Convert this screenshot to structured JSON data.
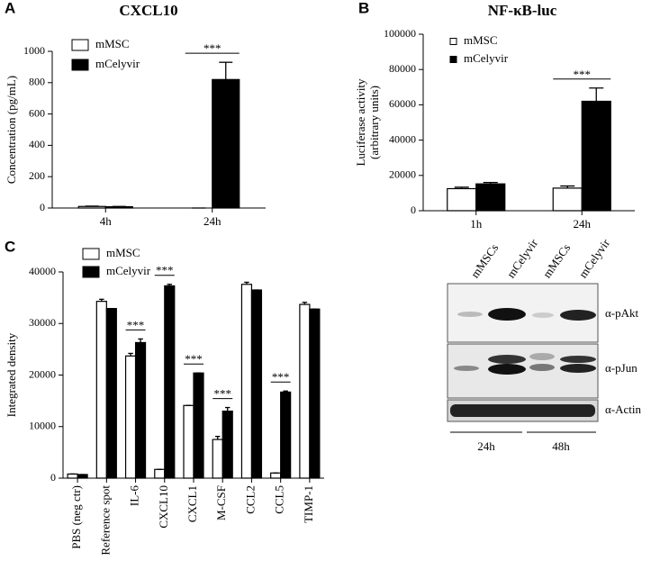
{
  "chart_data": [
    {
      "type": "bar",
      "panel_label": "A",
      "title": "CXCL10",
      "ylabel": [
        "Concentration (pg/mL)"
      ],
      "categories": [
        "4h",
        "24h"
      ],
      "series": [
        {
          "name": "mMSC",
          "color": "#ffffff",
          "values": [
            10,
            0
          ],
          "errors": [
            2,
            0
          ]
        },
        {
          "name": "mCelyvir",
          "color": "#000000",
          "values": [
            8,
            820
          ],
          "errors": [
            2,
            110
          ]
        }
      ],
      "significance": [
        null,
        "***"
      ],
      "ylim": [
        0,
        1000
      ],
      "yticks": [
        0,
        200,
        400,
        600,
        800,
        1000
      ]
    },
    {
      "type": "bar",
      "panel_label": "B",
      "title": "NF-κB-luc",
      "ylabel": [
        "Luciferase activity",
        "(arbitrary units)"
      ],
      "categories": [
        "1h",
        "24h"
      ],
      "series": [
        {
          "name": "mMSC",
          "color": "#ffffff",
          "values": [
            12500,
            12800
          ],
          "errors": [
            800,
            1200
          ]
        },
        {
          "name": "mCelyvir",
          "color": "#000000",
          "values": [
            15200,
            62000
          ],
          "errors": [
            800,
            7500
          ]
        }
      ],
      "significance": [
        null,
        "***"
      ],
      "ylim": [
        0,
        100000
      ],
      "yticks": [
        0,
        20000,
        40000,
        60000,
        80000,
        100000
      ]
    },
    {
      "type": "bar",
      "panel_label": "C",
      "ylabel": [
        "Integrated density"
      ],
      "categories": [
        "PBS (neg ctr)",
        "Reference spot",
        "IL-6",
        "CXCL10",
        "CXCL1",
        "M-CSF",
        "CCL2",
        "CCL5",
        "TIMP-1"
      ],
      "series": [
        {
          "name": "mMSC",
          "color": "#ffffff",
          "values": [
            800,
            34300,
            23700,
            1700,
            14100,
            7500,
            37600,
            1000,
            33700
          ],
          "errors": [
            0,
            400,
            500,
            0,
            0,
            600,
            400,
            0,
            400
          ]
        },
        {
          "name": "mCelyvir",
          "color": "#000000",
          "values": [
            700,
            32900,
            26300,
            37300,
            20400,
            13000,
            36500,
            16700,
            32800
          ],
          "errors": [
            0,
            0,
            700,
            300,
            0,
            700,
            0,
            200,
            0
          ]
        }
      ],
      "significance": [
        null,
        null,
        "***",
        "***",
        "***",
        "***",
        null,
        "***",
        null
      ],
      "ylim": [
        0,
        40000
      ],
      "yticks": [
        0,
        10000,
        20000,
        30000,
        40000
      ]
    }
  ],
  "blot": {
    "lane_labels": [
      "mMSCs",
      "mCelyvir",
      "mMSCs",
      "mCelyvir"
    ],
    "band_labels": [
      "α-pAkt",
      "α-pJun",
      "α-Actin"
    ],
    "time_labels": [
      "24h",
      "48h"
    ]
  }
}
